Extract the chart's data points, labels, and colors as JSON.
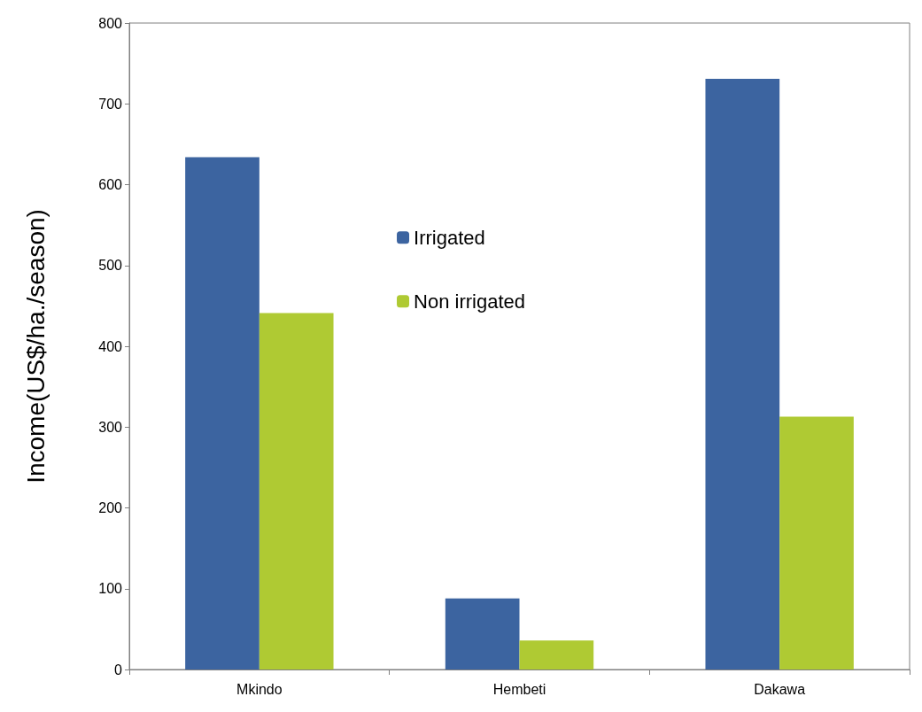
{
  "chart_data": {
    "type": "bar",
    "ylabel": "Income(US$/ha./season)",
    "categories": [
      "Mkindo",
      "Hembeti",
      "Dakawa"
    ],
    "series": [
      {
        "name": "Irrigated",
        "color": "#3c64a0",
        "values": [
          634,
          88,
          731
        ]
      },
      {
        "name": "Non irrigated",
        "color": "#afca33",
        "values": [
          441,
          36,
          313
        ]
      }
    ],
    "ylim": [
      0,
      800
    ],
    "yticks": [
      0,
      100,
      200,
      300,
      400,
      500,
      600,
      700,
      800
    ],
    "grid": false,
    "legend": "center"
  }
}
